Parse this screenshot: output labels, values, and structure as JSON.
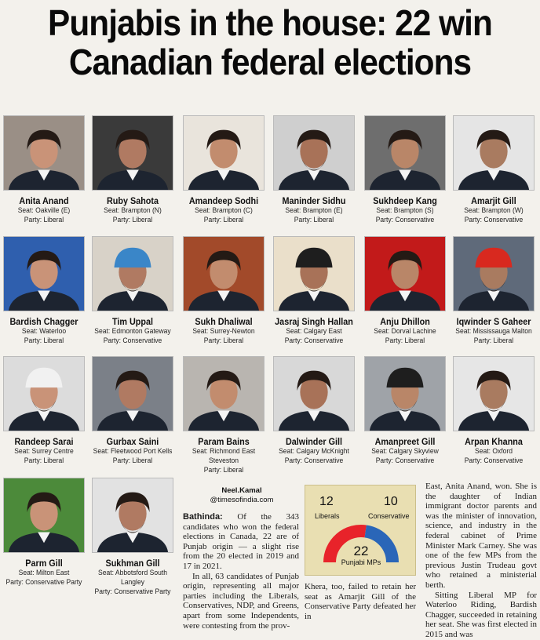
{
  "headline": {
    "line1": "Punjabis in the house: 22 win",
    "line2": "Canadian federal elections"
  },
  "candidates": [
    {
      "name": "Anita Anand",
      "seat": "Seat: Oakville (E)",
      "party": "Party: Liberal"
    },
    {
      "name": "Ruby Sahota",
      "seat": "Seat: Brampton (N)",
      "party": "Party: Liberal"
    },
    {
      "name": "Amandeep Sodhi",
      "seat": "Seat: Brampton (C)",
      "party": "Party: Liberal"
    },
    {
      "name": "Maninder Sidhu",
      "seat": "Seat: Brampton (E)",
      "party": "Party: Liberal"
    },
    {
      "name": "Sukhdeep Kang",
      "seat": "Seat: Brampton (S)",
      "party": "Party: Conservative"
    },
    {
      "name": "Amarjit Gill",
      "seat": "Seat: Brampton (W)",
      "party": "Party: Conservative"
    },
    {
      "name": "Bardish Chagger",
      "seat": "Seat: Waterloo",
      "party": "Party: Liberal"
    },
    {
      "name": "Tim Uppal",
      "seat": "Seat: Edmonton Gateway",
      "party": "Party: Conservative"
    },
    {
      "name": "Sukh Dhaliwal",
      "seat": "Seat: Surrey-Newton",
      "party": "Party: Liberal"
    },
    {
      "name": "Jasraj Singh Hallan",
      "seat": "Seat: Calgary East",
      "party": "Party: Conservative"
    },
    {
      "name": "Anju Dhillon",
      "seat": "Seat: Dorval Lachine",
      "party": "Party: Liberal"
    },
    {
      "name": "Iqwinder S Gaheer",
      "seat": "Seat: Mississauga Malton",
      "party": "Party: Liberal"
    },
    {
      "name": "Randeep Sarai",
      "seat": "Seat: Surrey Centre",
      "party": "Party: Liberal"
    },
    {
      "name": "Gurbax Saini",
      "seat": "Seat: Fleetwood Port Kells",
      "party": "Party: Liberal"
    },
    {
      "name": "Param Bains",
      "seat": "Seat: Richmond East Steveston",
      "party": "Party: Liberal"
    },
    {
      "name": "Dalwinder Gill",
      "seat": "Seat: Calgary McKnight",
      "party": "Party: Conservative"
    },
    {
      "name": "Amanpreet Gill",
      "seat": "Seat: Calgary Skyview",
      "party": "Party: Conservative"
    },
    {
      "name": "Arpan Khanna",
      "seat": "Seat: Oxford",
      "party": "Party: Conservative"
    },
    {
      "name": "Parm Gill",
      "seat": "Seat: Milton East",
      "party": "Party: Conservative Party"
    },
    {
      "name": "Sukhman Gill",
      "seat": "Seat: Abbotsford South Langley",
      "party": "Party: Conservative Party"
    }
  ],
  "byline": {
    "name": "Neel.Kamal",
    "handle": "@timesofindia.com"
  },
  "article": {
    "dateline": "Bathinda:",
    "col1_p1": "Of the 343 candidates who won the federal elections in Canada, 22 are of Punjab origin — a slight rise from the 20 elected in 2019 and 17 in 2021.",
    "col1_p2": "In all, 63 candidates of Punjab origin, representing all major parties including the Liberals, Conservatives, NDP, and Greens, apart from some Independents, were contesting from the prov-",
    "col2_p1": "Khera, too, failed to retain her seat as Amarjit Gill of the Conservative Party defeated her in",
    "col3_p1": "East, Anita Anand, won. She is the daughter of Indian immigrant doctor parents and was the minister of innovation, science, and industry in the federal cabinet of Prime Minister Mark Carney. She was one of the few MPs from the previous Justin Trudeau govt who retained a ministerial berth.",
    "col3_p2": "Sitting Liberal MP for Waterloo Riding, Bardish Chagger, succeeded in retaining her seat. She was first elected in 2015 and was"
  },
  "infobox": {
    "liberals_count": "12",
    "liberals_label": "Liberals",
    "conservative_count": "10",
    "conservative_label": "Conservative",
    "total_count": "22",
    "total_label": "Punjabi MPs",
    "liberals_value": 12,
    "conservative_value": 10,
    "liberals_color": "#e8232a",
    "conservative_color": "#2a66b8"
  }
}
